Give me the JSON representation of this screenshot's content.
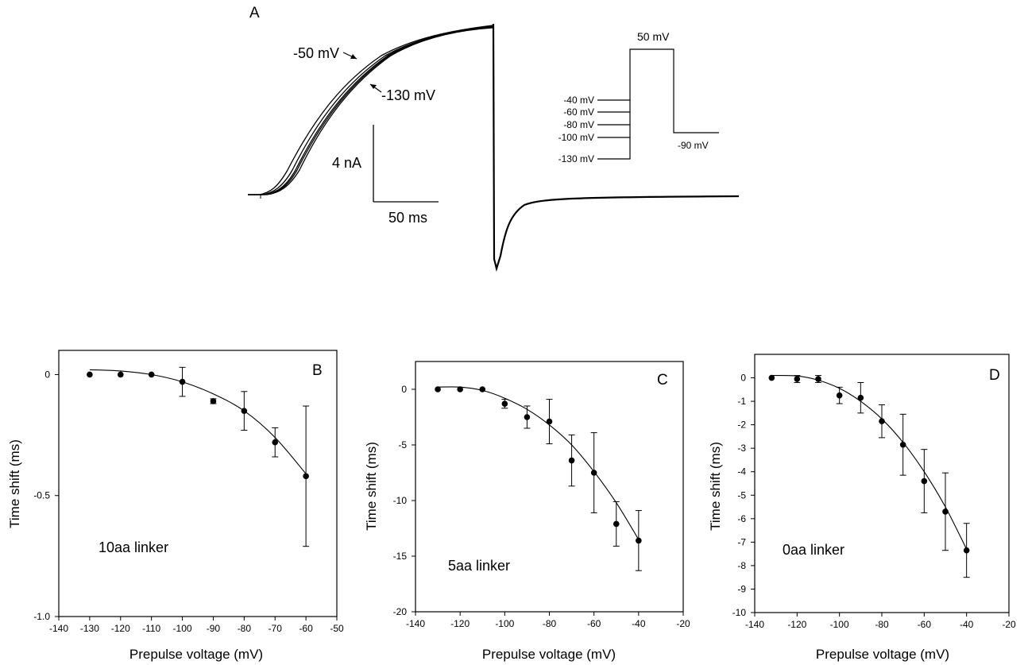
{
  "panel_a": {
    "label": "A",
    "trace_labels": {
      "minus50": "-50 mV",
      "minus130": "-130 mV"
    },
    "scalebar": {
      "current": "4 nA",
      "time": "50 ms"
    },
    "protocol": {
      "step": "50 mV",
      "tail": "-90 mV",
      "prepulses": [
        "-40 mV",
        "-60 mV",
        "-80 mV",
        "-100 mV",
        "-130 mV"
      ]
    }
  },
  "chart_data": [
    {
      "type": "scatter",
      "panel": "B",
      "ylabel": "Time shift (ms)",
      "xlabel": "Prepulse voltage (mV)",
      "annotation": "10aa linker",
      "xlim": [
        -140,
        -50
      ],
      "ylim": [
        -1.0,
        0.1
      ],
      "xticks": [
        -140,
        -130,
        -120,
        -110,
        -100,
        -90,
        -80,
        -70,
        -60,
        -50
      ],
      "yticks": [
        0,
        -0.5,
        -1.0
      ],
      "ytick_labels": [
        "0",
        "-0.5",
        "-1.0"
      ],
      "x": [
        -130,
        -120,
        -110,
        -100,
        -90,
        -80,
        -70,
        -60
      ],
      "y": [
        0,
        0,
        0,
        -0.03,
        -0.11,
        -0.15,
        -0.28,
        -0.42
      ],
      "err": [
        0,
        0,
        0,
        0.06,
        0.01,
        0.08,
        0.06,
        0.29
      ],
      "fit": [
        [
          -130,
          0.02
        ],
        [
          -120,
          0.015
        ],
        [
          -110,
          0.0
        ],
        [
          -100,
          -0.03
        ],
        [
          -90,
          -0.08
        ],
        [
          -80,
          -0.15
        ],
        [
          -70,
          -0.26
        ],
        [
          -60,
          -0.41
        ]
      ]
    },
    {
      "type": "scatter",
      "panel": "C",
      "ylabel": "Time shift (ms)",
      "xlabel": "Prepulse voltage (mV)",
      "annotation": "5aa  linker",
      "xlim": [
        -140,
        -20
      ],
      "ylim": [
        -20,
        2.5
      ],
      "xticks": [
        -140,
        -120,
        -100,
        -80,
        -60,
        -40,
        -20
      ],
      "yticks": [
        0,
        -5,
        -10,
        -15,
        -20
      ],
      "ytick_labels": [
        "0",
        "-5",
        "-10",
        "-15",
        "-20"
      ],
      "x": [
        -130,
        -120,
        -110,
        -100,
        -90,
        -80,
        -70,
        -60,
        -50,
        -40
      ],
      "y": [
        0,
        0,
        0,
        -1.3,
        -2.5,
        -2.9,
        -6.4,
        -7.5,
        -12.1,
        -13.6
      ],
      "err": [
        0,
        0,
        0,
        0.4,
        1.0,
        2.0,
        2.3,
        3.6,
        2.0,
        2.7
      ],
      "fit": [
        [
          -130,
          0.2
        ],
        [
          -120,
          0.2
        ],
        [
          -110,
          -0.1
        ],
        [
          -100,
          -0.8
        ],
        [
          -90,
          -1.8
        ],
        [
          -80,
          -3.2
        ],
        [
          -70,
          -5.0
        ],
        [
          -60,
          -7.4
        ],
        [
          -50,
          -10.2
        ],
        [
          -40,
          -13.5
        ]
      ]
    },
    {
      "type": "scatter",
      "panel": "D",
      "ylabel": "Time shift (ms)",
      "xlabel": "Prepulse voltage (mV)",
      "annotation": "0aa  linker",
      "xlim": [
        -140,
        -20
      ],
      "ylim": [
        -10,
        1
      ],
      "xticks": [
        -140,
        -120,
        -100,
        -80,
        -60,
        -40,
        -20
      ],
      "yticks": [
        0,
        -1,
        -2,
        -3,
        -4,
        -5,
        -6,
        -7,
        -8,
        -9,
        -10
      ],
      "ytick_labels": [
        "0",
        "-1",
        "-2",
        "-3",
        "-4",
        "-5",
        "-6",
        "-7",
        "-8",
        "-9",
        "-10"
      ],
      "x": [
        -132,
        -120,
        -110,
        -100,
        -90,
        -80,
        -70,
        -60,
        -50,
        -40
      ],
      "y": [
        0,
        -0.05,
        -0.05,
        -0.75,
        -0.85,
        -1.85,
        -2.85,
        -4.4,
        -5.7,
        -7.35
      ],
      "err": [
        0,
        0.15,
        0.15,
        0.35,
        0.65,
        0.7,
        1.3,
        1.35,
        1.65,
        1.15
      ],
      "fit": [
        [
          -132,
          0.1
        ],
        [
          -120,
          0.08
        ],
        [
          -110,
          -0.1
        ],
        [
          -100,
          -0.45
        ],
        [
          -90,
          -1.0
        ],
        [
          -80,
          -1.75
        ],
        [
          -70,
          -2.75
        ],
        [
          -60,
          -4.0
        ],
        [
          -50,
          -5.5
        ],
        [
          -40,
          -7.3
        ]
      ]
    }
  ]
}
